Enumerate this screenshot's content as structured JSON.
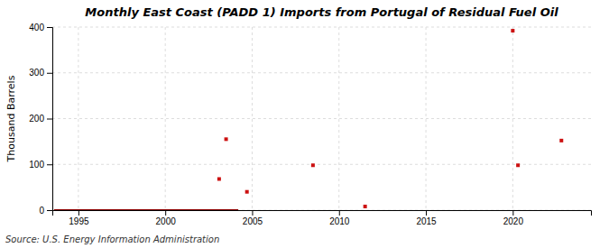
{
  "chart_data": {
    "type": "scatter",
    "title": "Monthly East Coast (PADD 1) Imports from Portugal of Residual Fuel Oil",
    "ylabel": "Thousand Barrels",
    "annotations": [
      "Source: U.S. Energy Information Administration"
    ],
    "xlim": [
      1993.5,
      2024.5
    ],
    "ylim": [
      0,
      400
    ],
    "xticks": [
      1995,
      2000,
      2005,
      2010,
      2015,
      2020
    ],
    "yticks": [
      0,
      100,
      200,
      300,
      400
    ],
    "grid": true,
    "series": [
      {
        "type": "line",
        "color": "#8b0000",
        "x": [
          1993.6,
          2004.2
        ],
        "values": [
          0,
          0
        ]
      },
      {
        "type": "scatter",
        "color": "#cc1111",
        "marker": "square",
        "x": [
          2003.1,
          2003.5,
          2004.7,
          2008.5,
          2011.5,
          2020.0,
          2020.3,
          2022.8
        ],
        "values": [
          68,
          155,
          40,
          98,
          8,
          392,
          98,
          152
        ]
      }
    ]
  }
}
